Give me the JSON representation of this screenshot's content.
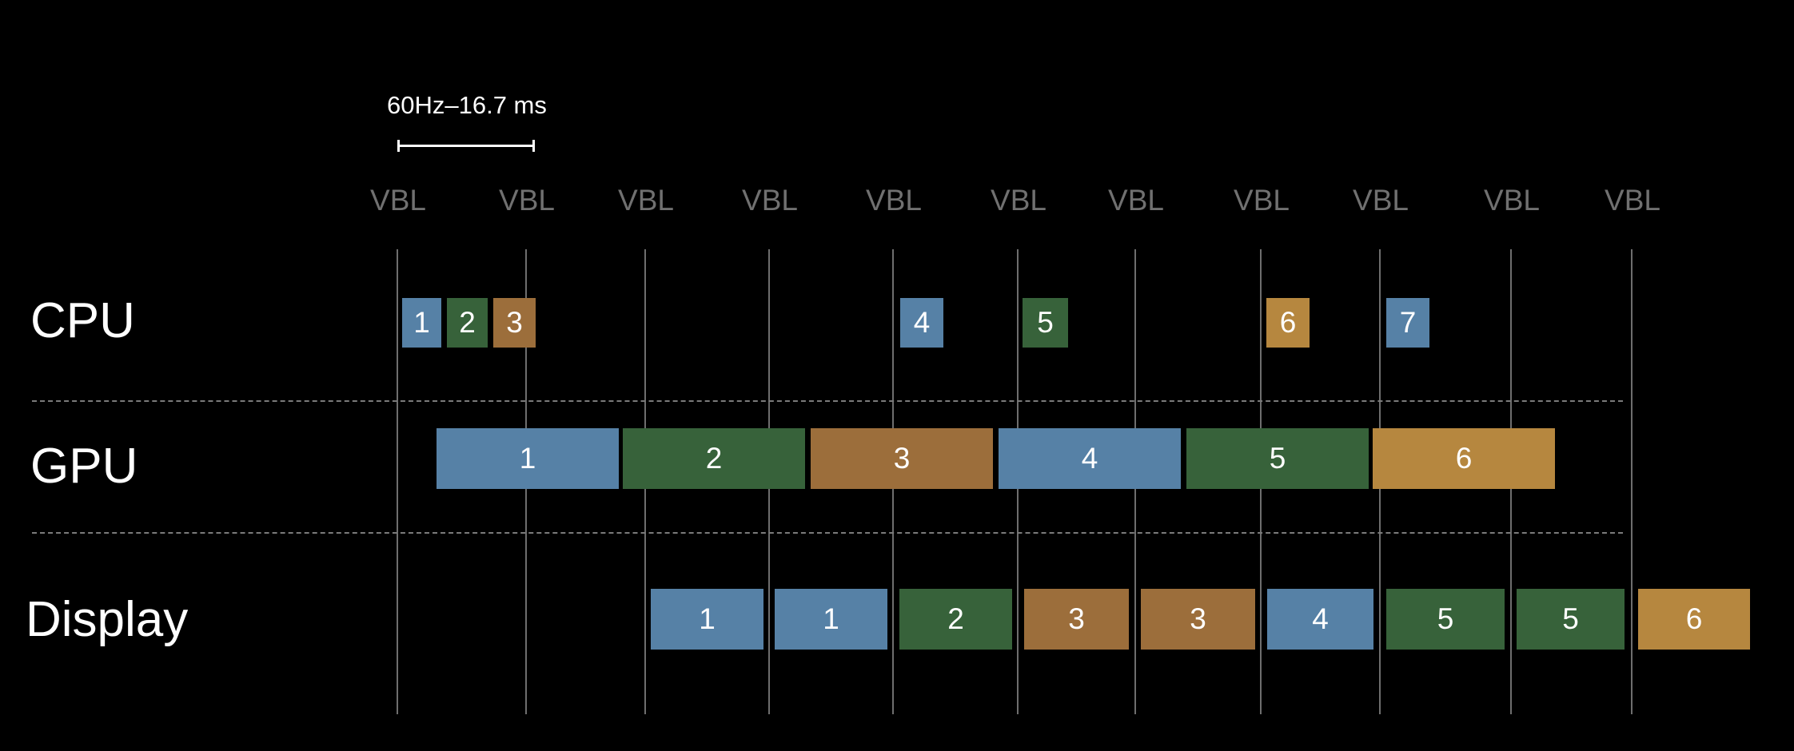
{
  "scale": {
    "label": "60Hz–16.7 ms"
  },
  "vbl_label": "VBL",
  "rows": {
    "cpu": "CPU",
    "gpu": "GPU",
    "display": "Display"
  },
  "colors": {
    "blue": "#5681a6",
    "green": "#37623a",
    "brown": "#9c6e3b",
    "orange": "#b6873f"
  },
  "cpu_frames": [
    "1",
    "2",
    "3",
    "4",
    "5",
    "6",
    "7"
  ],
  "gpu_frames": [
    "1",
    "2",
    "3",
    "4",
    "5",
    "6"
  ],
  "display_frames": [
    "1",
    "1",
    "2",
    "3",
    "3",
    "4",
    "5",
    "5",
    "6"
  ]
}
